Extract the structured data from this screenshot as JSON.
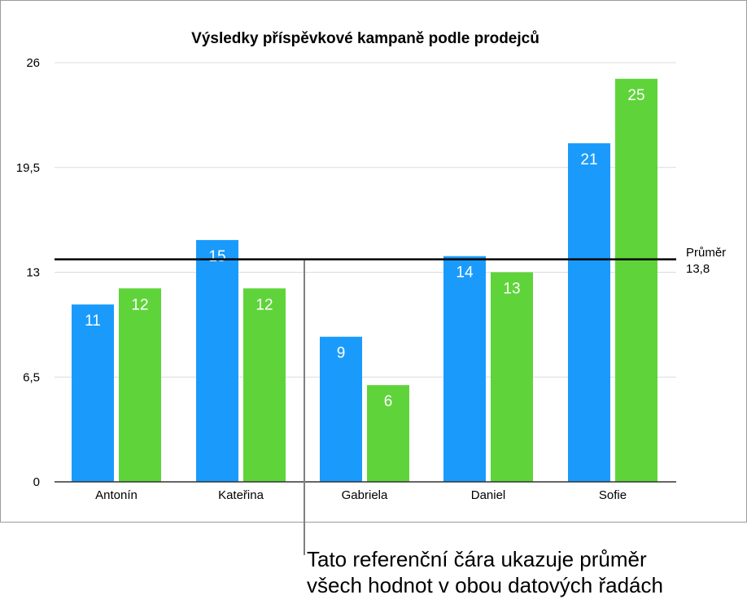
{
  "chart_data": {
    "type": "bar",
    "title": "Výsledky příspěvkové kampaně podle prodejců",
    "xlabel": "",
    "ylabel": "",
    "categories": [
      "Antonín",
      "Kateřina",
      "Gabriela",
      "Daniel",
      "Sofie"
    ],
    "series": [
      {
        "values": [
          11,
          15,
          9,
          14,
          21
        ],
        "color": "#1a9bfc"
      },
      {
        "values": [
          12,
          12,
          6,
          13,
          25
        ],
        "color": "#5fd43a"
      }
    ],
    "ylim": [
      0,
      26
    ],
    "yticks": [
      0,
      6.5,
      13,
      19.5,
      26
    ],
    "ytick_labels": [
      "0",
      "6,5",
      "13",
      "19,5",
      "26"
    ],
    "grid": true,
    "legend": "none",
    "reference_line": {
      "label": "Průměr",
      "value": 13.8,
      "value_label": "13,8",
      "color": "#000000"
    }
  },
  "callout": {
    "line1": "Tato referenční čára ukazuje průměr",
    "line2": "všech hodnot v obou datových řadách"
  },
  "colors": {
    "grid": "#dcdcdc",
    "axis": "#333333",
    "frame": "#9b9b9b",
    "callout_line": "#808080"
  }
}
